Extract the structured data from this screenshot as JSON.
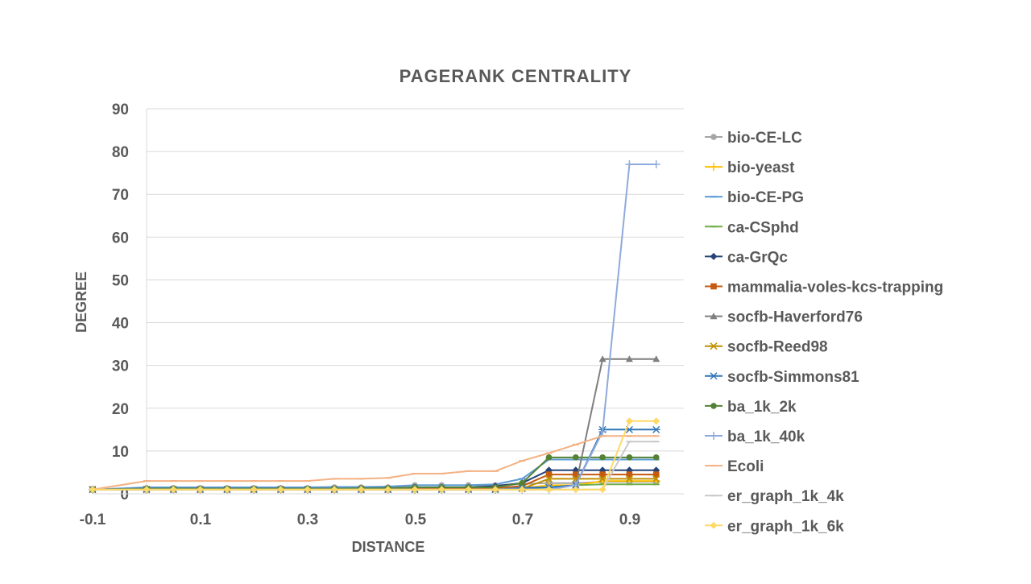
{
  "chart_data": {
    "type": "line",
    "title": "PAGERANK CENTRALITY",
    "xlabel": "DISTANCE",
    "ylabel": "DEGREE",
    "xlim": [
      -0.1,
      0.95
    ],
    "ylim": [
      0,
      90
    ],
    "xticks": [
      -0.1,
      0.1,
      0.3,
      0.5,
      0.7,
      0.9
    ],
    "xtick_labels": [
      "-0.1",
      "0.1",
      "0.3",
      "0.5",
      "0.7",
      "0.9"
    ],
    "yticks": [
      0,
      10,
      20,
      30,
      40,
      50,
      60,
      70,
      80,
      90
    ],
    "grid": true,
    "legend_position": "right",
    "x": [
      -0.1,
      0,
      0.05,
      0.1,
      0.15,
      0.2,
      0.25,
      0.3,
      0.35,
      0.4,
      0.45,
      0.5,
      0.55,
      0.6,
      0.65,
      0.7,
      0.75,
      0.8,
      0.85,
      0.9,
      0.95
    ],
    "series": [
      {
        "name": "bio-CE-LC",
        "color": "#a5a5a5",
        "marker": "circle",
        "values": [
          1,
          1.3,
          1.3,
          1.3,
          1.3,
          1.3,
          1.3,
          1.3,
          1.5,
          1.5,
          1.5,
          2,
          2,
          2,
          2,
          2.3,
          2.5,
          2.5,
          2.8,
          2.8,
          2.8
        ]
      },
      {
        "name": "bio-yeast",
        "color": "#ffc000",
        "marker": "plus",
        "values": [
          1,
          1,
          1,
          1,
          1,
          1,
          1,
          1,
          1,
          1,
          1,
          1,
          1,
          1,
          1,
          1.3,
          2,
          2,
          3,
          3,
          3
        ]
      },
      {
        "name": "bio-CE-PG",
        "color": "#5b9bd5",
        "marker": "dash",
        "values": [
          1,
          1.5,
          1.5,
          1.5,
          1.5,
          1.5,
          1.5,
          1.5,
          1.6,
          1.6,
          1.7,
          2,
          2,
          2,
          2.2,
          3.5,
          8,
          8,
          8,
          8,
          8
        ]
      },
      {
        "name": "ca-CSphd",
        "color": "#70ad47",
        "marker": "dash",
        "values": [
          1,
          1,
          1,
          1,
          1,
          1,
          1,
          1,
          1,
          1,
          1,
          1,
          1,
          1,
          1,
          1.2,
          1.5,
          2,
          2.2,
          2.2,
          2.2
        ]
      },
      {
        "name": "ca-GrQc",
        "color": "#264478",
        "marker": "diamond",
        "values": [
          1,
          1.2,
          1.2,
          1.2,
          1.2,
          1.2,
          1.2,
          1.2,
          1.2,
          1.2,
          1.3,
          1.5,
          1.5,
          1.5,
          1.8,
          2.5,
          5.5,
          5.5,
          5.5,
          5.5,
          5.5
        ]
      },
      {
        "name": "mammalia-voles-kcs-trapping",
        "color": "#c55a11",
        "marker": "square",
        "values": [
          1,
          1,
          1,
          1,
          1,
          1,
          1,
          1,
          1,
          1,
          1,
          1.2,
          1.2,
          1.3,
          1.3,
          1.8,
          4.5,
          4.5,
          4.5,
          4.5,
          4.5
        ]
      },
      {
        "name": "socfb-Haverford76",
        "color": "#7f7f7f",
        "marker": "triangle",
        "values": [
          1,
          1,
          1,
          1,
          1,
          1,
          1,
          1,
          1,
          1,
          1,
          1,
          1,
          1,
          1,
          1.5,
          1.5,
          2,
          31.5,
          31.5,
          31.5
        ]
      },
      {
        "name": "socfb-Reed98",
        "color": "#bf9000",
        "marker": "x",
        "values": [
          1,
          1,
          1,
          1,
          1,
          1,
          1,
          1,
          1,
          1,
          1,
          1,
          1,
          1,
          1,
          1.2,
          3.5,
          3.5,
          3.5,
          3.5,
          3.5
        ]
      },
      {
        "name": "socfb-Simmons81",
        "color": "#2e75b6",
        "marker": "asterisk",
        "values": [
          1,
          1,
          1,
          1,
          1,
          1,
          1,
          1,
          1,
          1,
          1,
          1,
          1,
          1,
          1,
          1.3,
          1.5,
          2,
          15,
          15,
          15
        ]
      },
      {
        "name": "ba_1k_2k",
        "color": "#548235",
        "marker": "circle",
        "values": [
          1,
          1.2,
          1.2,
          1.2,
          1.2,
          1.2,
          1.2,
          1.2,
          1.2,
          1.3,
          1.3,
          1.5,
          1.5,
          1.5,
          1.5,
          2.5,
          8.5,
          8.5,
          8.5,
          8.5,
          8.5
        ]
      },
      {
        "name": "ba_1k_40k",
        "color": "#8faadc",
        "marker": "plus",
        "values": [
          1,
          1,
          1,
          1,
          1,
          1,
          1,
          1,
          1,
          1,
          1,
          1,
          1,
          1,
          1,
          1,
          1,
          2,
          14.5,
          77,
          77
        ]
      },
      {
        "name": "Ecoli",
        "color": "#f4b183",
        "marker": "dash",
        "values": [
          1,
          3,
          3,
          3,
          3,
          3,
          3,
          3,
          3.5,
          3.5,
          3.7,
          4.7,
          4.7,
          5.3,
          5.3,
          7.7,
          9.5,
          11.5,
          13.5,
          13.5,
          13.5
        ]
      },
      {
        "name": "er_graph_1k_4k",
        "color": "#c9c9c9",
        "marker": "dash",
        "values": [
          1,
          1,
          1,
          1,
          1,
          1,
          1,
          1,
          1,
          1,
          1,
          1,
          1,
          1,
          1,
          1,
          1,
          1,
          1,
          12.2,
          12.2
        ]
      },
      {
        "name": "er_graph_1k_6k",
        "color": "#ffd966",
        "marker": "diamond",
        "values": [
          1,
          1,
          1,
          1,
          1,
          1,
          1,
          1,
          1,
          1,
          1,
          1,
          1,
          1,
          1,
          1,
          1,
          1,
          1,
          17,
          17
        ]
      }
    ]
  }
}
